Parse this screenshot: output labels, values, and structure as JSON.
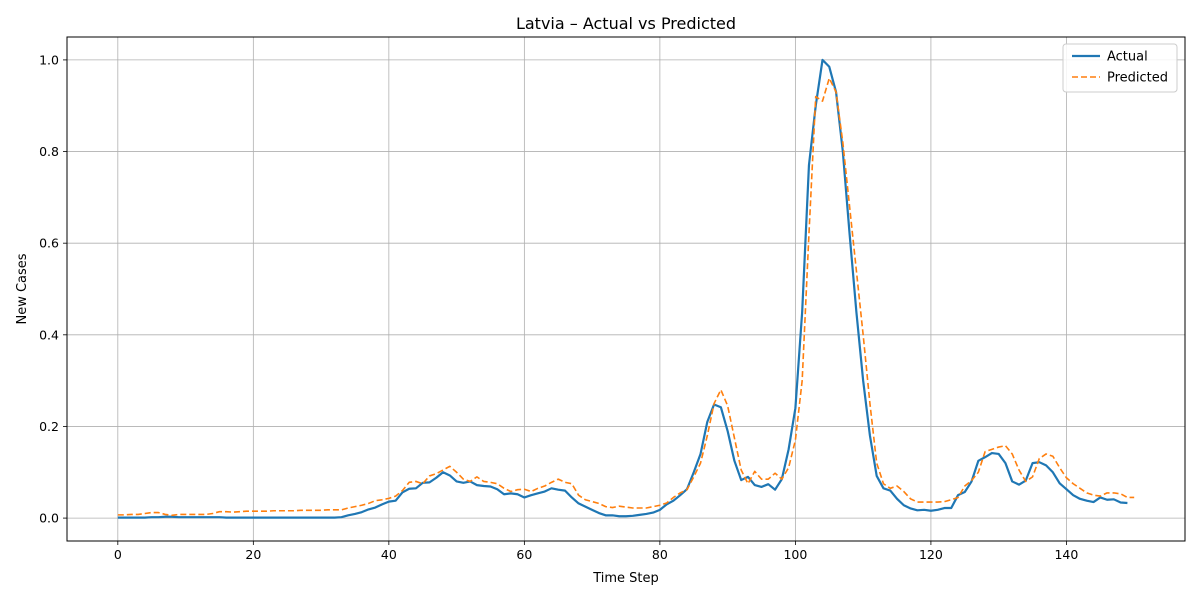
{
  "chart_data": {
    "type": "line",
    "title": "Latvia – Actual vs Predicted",
    "xlabel": "Time Step",
    "ylabel": "New Cases",
    "xlim": [
      -7.5,
      157.5
    ],
    "ylim": [
      -0.05,
      1.05
    ],
    "xticks": [
      0,
      20,
      40,
      60,
      80,
      100,
      120,
      140
    ],
    "yticks": [
      0.0,
      0.2,
      0.4,
      0.6,
      0.8,
      1.0
    ],
    "xtick_labels": [
      "0",
      "20",
      "40",
      "60",
      "80",
      "100",
      "120",
      "140"
    ],
    "ytick_labels": [
      "0.0",
      "0.2",
      "0.4",
      "0.6",
      "0.8",
      "1.0"
    ],
    "grid": true,
    "legend_position": "top-right",
    "x_start": 0,
    "series": [
      {
        "name": "Actual",
        "color": "#1f77b4",
        "style": "solid",
        "values": [
          0.001,
          0.001,
          0.001,
          0.001,
          0.001,
          0.002,
          0.002,
          0.003,
          0.003,
          0.002,
          0.002,
          0.002,
          0.002,
          0.002,
          0.002,
          0.002,
          0.001,
          0.001,
          0.001,
          0.001,
          0.001,
          0.001,
          0.001,
          0.001,
          0.001,
          0.001,
          0.001,
          0.001,
          0.001,
          0.001,
          0.001,
          0.001,
          0.001,
          0.002,
          0.006,
          0.009,
          0.013,
          0.019,
          0.023,
          0.03,
          0.036,
          0.038,
          0.056,
          0.064,
          0.065,
          0.077,
          0.078,
          0.088,
          0.1,
          0.093,
          0.08,
          0.077,
          0.08,
          0.072,
          0.07,
          0.069,
          0.063,
          0.052,
          0.054,
          0.052,
          0.045,
          0.05,
          0.054,
          0.058,
          0.065,
          0.062,
          0.06,
          0.045,
          0.032,
          0.025,
          0.018,
          0.011,
          0.006,
          0.006,
          0.004,
          0.004,
          0.005,
          0.007,
          0.009,
          0.012,
          0.018,
          0.03,
          0.038,
          0.05,
          0.063,
          0.1,
          0.14,
          0.21,
          0.248,
          0.242,
          0.19,
          0.125,
          0.083,
          0.09,
          0.072,
          0.068,
          0.074,
          0.062,
          0.085,
          0.15,
          0.24,
          0.45,
          0.77,
          0.9,
          1.0,
          0.985,
          0.93,
          0.8,
          0.62,
          0.45,
          0.3,
          0.18,
          0.092,
          0.065,
          0.06,
          0.042,
          0.028,
          0.021,
          0.017,
          0.018,
          0.016,
          0.018,
          0.022,
          0.022,
          0.05,
          0.057,
          0.08,
          0.125,
          0.133,
          0.142,
          0.14,
          0.12,
          0.08,
          0.073,
          0.082,
          0.12,
          0.122,
          0.115,
          0.1,
          0.076,
          0.063,
          0.05,
          0.042,
          0.038,
          0.035,
          0.045,
          0.04,
          0.041,
          0.034,
          0.033
        ]
      },
      {
        "name": "Predicted",
        "color": "#ff7f0e",
        "style": "dashed",
        "values": [
          0.007,
          0.007,
          0.008,
          0.008,
          0.01,
          0.012,
          0.012,
          0.008,
          0.006,
          0.008,
          0.008,
          0.008,
          0.008,
          0.008,
          0.01,
          0.014,
          0.014,
          0.013,
          0.014,
          0.015,
          0.015,
          0.015,
          0.015,
          0.016,
          0.016,
          0.016,
          0.016,
          0.017,
          0.017,
          0.017,
          0.017,
          0.018,
          0.018,
          0.018,
          0.022,
          0.025,
          0.028,
          0.032,
          0.038,
          0.04,
          0.043,
          0.048,
          0.06,
          0.078,
          0.08,
          0.075,
          0.092,
          0.097,
          0.105,
          0.113,
          0.1,
          0.085,
          0.08,
          0.09,
          0.08,
          0.078,
          0.075,
          0.065,
          0.058,
          0.062,
          0.063,
          0.058,
          0.065,
          0.07,
          0.078,
          0.085,
          0.078,
          0.075,
          0.05,
          0.04,
          0.036,
          0.032,
          0.025,
          0.023,
          0.026,
          0.024,
          0.022,
          0.022,
          0.022,
          0.025,
          0.028,
          0.033,
          0.045,
          0.055,
          0.062,
          0.09,
          0.12,
          0.18,
          0.25,
          0.28,
          0.245,
          0.175,
          0.105,
          0.075,
          0.102,
          0.085,
          0.085,
          0.098,
          0.085,
          0.11,
          0.17,
          0.3,
          0.62,
          0.92,
          0.91,
          0.96,
          0.93,
          0.82,
          0.68,
          0.54,
          0.4,
          0.25,
          0.12,
          0.075,
          0.065,
          0.07,
          0.058,
          0.042,
          0.035,
          0.035,
          0.035,
          0.035,
          0.036,
          0.04,
          0.045,
          0.07,
          0.082,
          0.1,
          0.145,
          0.15,
          0.155,
          0.158,
          0.14,
          0.105,
          0.08,
          0.09,
          0.13,
          0.14,
          0.135,
          0.11,
          0.088,
          0.075,
          0.065,
          0.055,
          0.05,
          0.048,
          0.055,
          0.055,
          0.053,
          0.045,
          0.045
        ]
      }
    ]
  }
}
